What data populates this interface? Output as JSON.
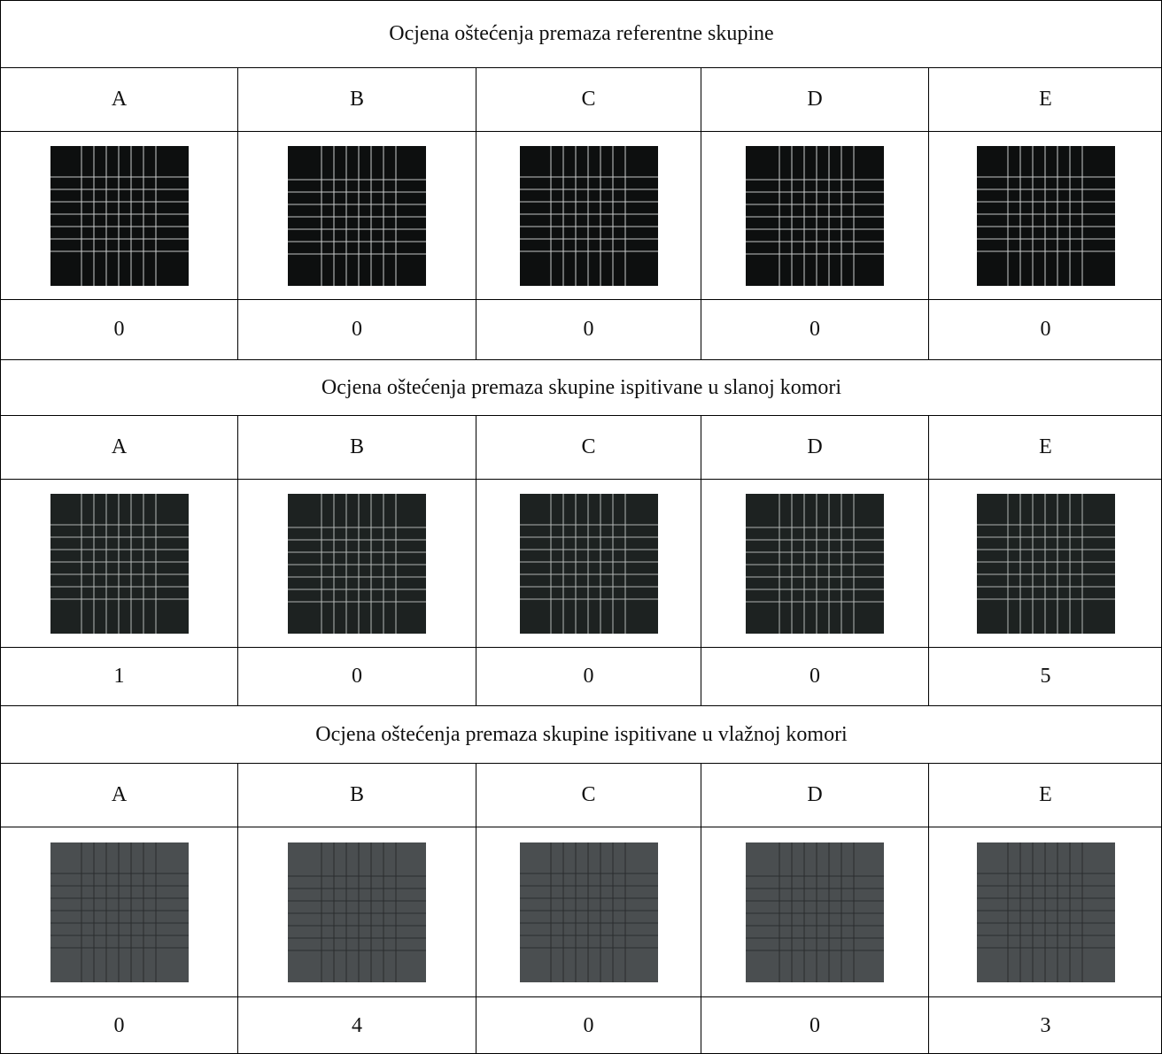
{
  "sections": [
    {
      "title": "Ocjena oštećenja premaza referentne skupine",
      "columns": [
        "A",
        "B",
        "C",
        "D",
        "E"
      ],
      "scores": [
        0,
        0,
        0,
        0,
        0
      ]
    },
    {
      "title": "Ocjena oštećenja premaza skupine ispitivane u slanoj komori",
      "columns": [
        "A",
        "B",
        "C",
        "D",
        "E"
      ],
      "scores": [
        1,
        0,
        0,
        0,
        5
      ]
    },
    {
      "title": "Ocjena oštećenja premaza skupine ispitivane u vlažnoj komori",
      "columns": [
        "A",
        "B",
        "C",
        "D",
        "E"
      ],
      "scores": [
        0,
        4,
        0,
        0,
        3
      ]
    }
  ]
}
